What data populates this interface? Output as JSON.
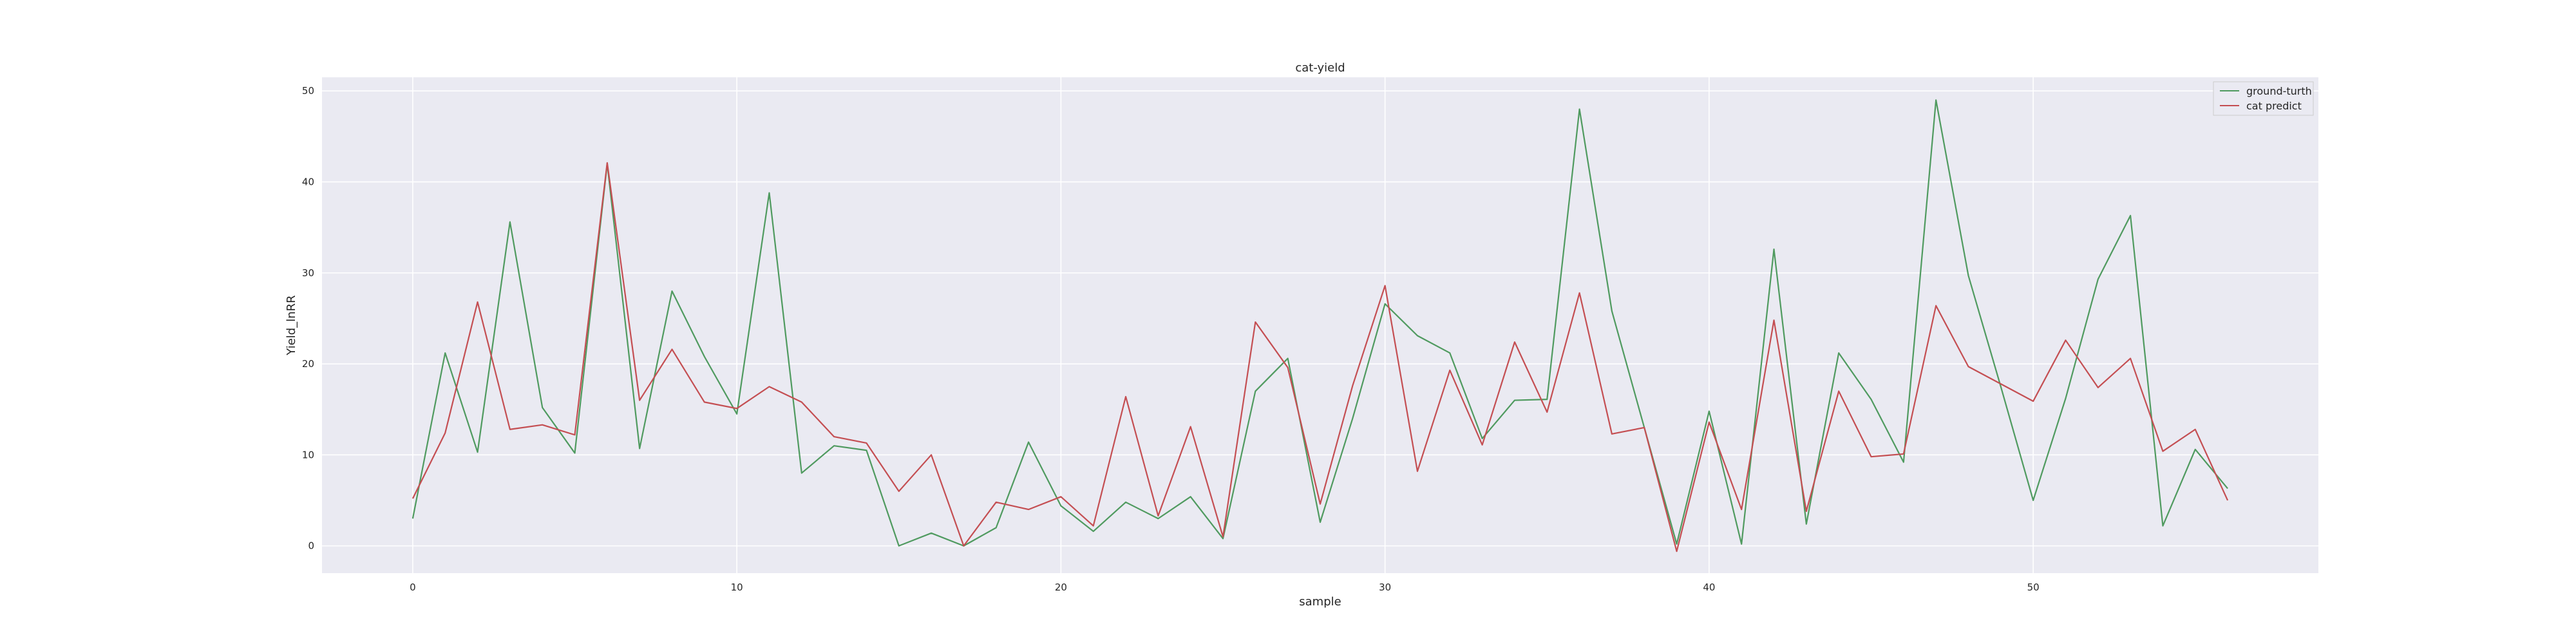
{
  "chart_data": {
    "type": "line",
    "title": "cat-yield",
    "xlabel": "sample",
    "ylabel": "Yield_lnRR",
    "xlim": [
      -2.8,
      58.8
    ],
    "ylim": [
      -3,
      51.5
    ],
    "xticks": [
      0,
      10,
      20,
      30,
      40,
      50
    ],
    "yticks": [
      0,
      10,
      20,
      30,
      40,
      50
    ],
    "grid": true,
    "legend_position": "top-right",
    "background": "#eaeaf2",
    "series": [
      {
        "name": "ground-turth",
        "color": "#4f9a5f",
        "values": [
          3.0,
          21.2,
          10.3,
          35.6,
          15.2,
          10.2,
          42.0,
          10.7,
          28.0,
          20.8,
          14.5,
          38.8,
          8.0,
          11.0,
          10.5,
          0.0,
          1.4,
          0.0,
          2.0,
          11.4,
          4.4,
          1.6,
          4.8,
          3.0,
          5.4,
          0.8,
          17.0,
          20.6,
          2.6,
          14.0,
          26.6,
          23.1,
          21.2,
          11.8,
          16.0,
          16.1,
          48.0,
          25.8,
          13.0,
          0.2,
          14.8,
          0.2,
          32.6,
          2.4,
          21.2,
          16.1,
          9.2,
          49.0,
          29.7,
          17.5,
          5.0,
          16.2,
          29.3,
          36.3,
          2.2,
          10.6,
          6.3
        ]
      },
      {
        "name": "cat predict",
        "color": "#c44e52",
        "values": [
          5.2,
          12.4,
          26.8,
          12.8,
          13.3,
          12.2,
          42.1,
          16.0,
          21.6,
          15.8,
          15.1,
          17.5,
          15.8,
          12.0,
          11.3,
          6.0,
          10.0,
          0.0,
          4.8,
          4.0,
          5.4,
          2.2,
          16.4,
          3.3,
          13.1,
          1.0,
          24.6,
          19.6,
          4.6,
          17.6,
          28.6,
          8.2,
          19.3,
          11.1,
          22.4,
          14.7,
          27.8,
          12.3,
          13.0,
          -0.6,
          13.6,
          4.0,
          24.8,
          3.8,
          17.0,
          9.8,
          10.1,
          26.4,
          19.7,
          17.8,
          15.9,
          22.6,
          17.4,
          20.6,
          10.4,
          12.8,
          5.0
        ]
      }
    ]
  }
}
